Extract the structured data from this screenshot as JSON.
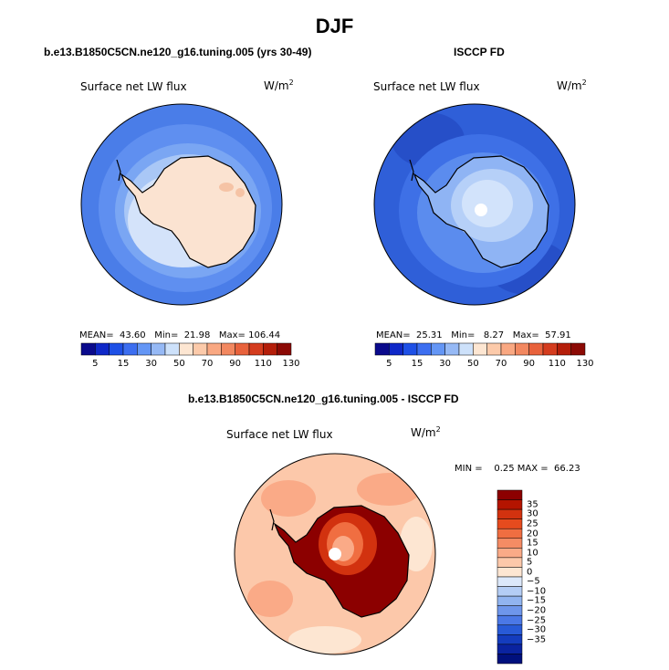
{
  "title": "DJF",
  "panels": [
    {
      "case_label": "b.e13.B1850C5CN.ne120_g16.tuning.005 (yrs 30-49)",
      "variable": "Surface net LW flux",
      "units_base": "W/m",
      "units_exp": "2",
      "stats": {
        "mean_label": "MEAN=",
        "mean": "43.60",
        "min_label": "Min=",
        "min": "21.98",
        "max_label": "Max=",
        "max": "106.44"
      }
    },
    {
      "case_label": "ISCCP FD",
      "variable": "Surface net LW flux",
      "units_base": "W/m",
      "units_exp": "2",
      "stats": {
        "mean_label": "MEAN=",
        "mean": "25.31",
        "min_label": "Min=",
        "min": "8.27",
        "max_label": "Max=",
        "max": "57.91"
      }
    },
    {
      "case_label": "b.e13.B1850C5CN.ne120_g16.tuning.005 - ISCCP FD",
      "variable": "Surface net LW flux",
      "units_base": "W/m",
      "units_exp": "2",
      "stats": {
        "min_label": "MIN =",
        "min": "0.25",
        "max_label": "MAX =",
        "max": "66.23"
      }
    }
  ],
  "colorbar_abs": {
    "colors": [
      "#0a0a8c",
      "#0f28c8",
      "#1e50e6",
      "#3c6ef0",
      "#6496f5",
      "#96b9f5",
      "#cde1fa",
      "#fde6d2",
      "#fccaaa",
      "#f9a882",
      "#f28860",
      "#e8623c",
      "#d43c1e",
      "#b41e0a",
      "#8c0a05"
    ],
    "labels": [
      "5",
      "15",
      "30",
      "50",
      "70",
      "90",
      "110",
      "130"
    ]
  },
  "colorbar_diff": {
    "colors": [
      "#8c0000",
      "#b41400",
      "#d2320f",
      "#e64b1e",
      "#f06e41",
      "#f58c64",
      "#faaa87",
      "#fcc8aa",
      "#fde6d2",
      "#dce8fa",
      "#b4cdf5",
      "#91b4f0",
      "#6e96eb",
      "#4b78e6",
      "#285ad7",
      "#143cbe",
      "#0a23a0",
      "#00107d"
    ],
    "labels": [
      "35",
      "30",
      "25",
      "20",
      "15",
      "10",
      "5",
      "0",
      "−5",
      "−10",
      "−15",
      "−20",
      "−25",
      "−30",
      "−35"
    ]
  }
}
